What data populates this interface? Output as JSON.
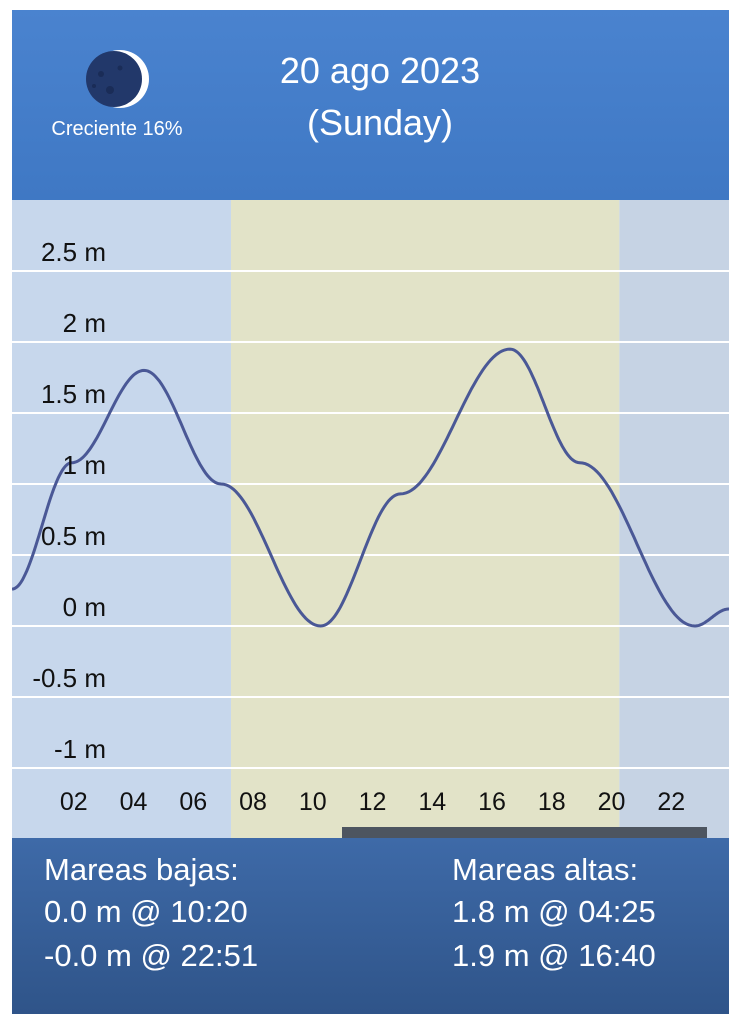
{
  "header": {
    "moon_phase_label": "Creciente 16%",
    "date_line1": "20 ago 2023",
    "date_line2": "(Sunday)"
  },
  "tides_footer": {
    "low_title": "Mareas bajas:",
    "low_tides": [
      "0.0 m @ 10:20",
      "-0.0 m @ 22:51"
    ],
    "high_title": "Mareas altas:",
    "high_tides": [
      "1.8 m @ 04:25",
      "1.9 m @ 16:40"
    ]
  },
  "colors": {
    "night": "#c7d7ec",
    "day": "#e2e3c8",
    "curve": "#4a5896",
    "grid": "#ffffff",
    "header": "#4a83cf",
    "footer": "#3a64a0"
  },
  "chart_data": {
    "type": "line",
    "x_ticks": [
      "02",
      "04",
      "06",
      "08",
      "10",
      "12",
      "14",
      "16",
      "18",
      "20",
      "22"
    ],
    "y_ticks": [
      "2.5 m",
      "2 m",
      "1.5 m",
      "1 m",
      "0.5 m",
      "0 m",
      "-0.5 m",
      "-1 m"
    ],
    "y_tick_values": [
      2.5,
      2,
      1.5,
      1,
      0.5,
      0,
      -0.5,
      -1
    ],
    "xlim": [
      0,
      24
    ],
    "ylim": [
      -1.2,
      3.0
    ],
    "daylight_hours": [
      7.33,
      20.33
    ],
    "series": [
      {
        "x": [
          0,
          2,
          4.42,
          7,
          10.33,
          13,
          16.67,
          19,
          22.85,
          24
        ],
        "y": [
          0.26,
          1.15,
          1.8,
          1.0,
          0.0,
          0.93,
          1.95,
          1.15,
          0.0,
          0.12
        ]
      }
    ]
  }
}
